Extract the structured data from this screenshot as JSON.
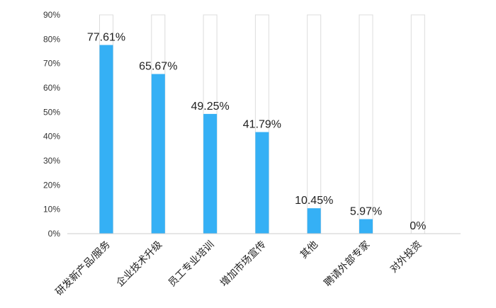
{
  "chart_data": {
    "type": "bar",
    "categories": [
      "研发新产品/服务",
      "企业技术升级",
      "员工专业培训",
      "增加市场宣传",
      "其他",
      "聘请外部专家",
      "对外投资"
    ],
    "values": [
      77.61,
      65.67,
      49.25,
      41.79,
      10.45,
      5.97,
      0
    ],
    "data_labels": [
      "77.61%",
      "65.67%",
      "49.25%",
      "41.79%",
      "10.45%",
      "5.97%",
      "0%"
    ],
    "y_ticks": [
      "0%",
      "10%",
      "20%",
      "30%",
      "40%",
      "50%",
      "60%",
      "70%",
      "80%",
      "90%"
    ],
    "ylim": [
      0,
      90
    ],
    "grid": false,
    "legend": "none",
    "colors": {
      "bar": "#35b0f5",
      "track_stroke": "#dcdcdc",
      "axis": "#cccccc"
    }
  }
}
